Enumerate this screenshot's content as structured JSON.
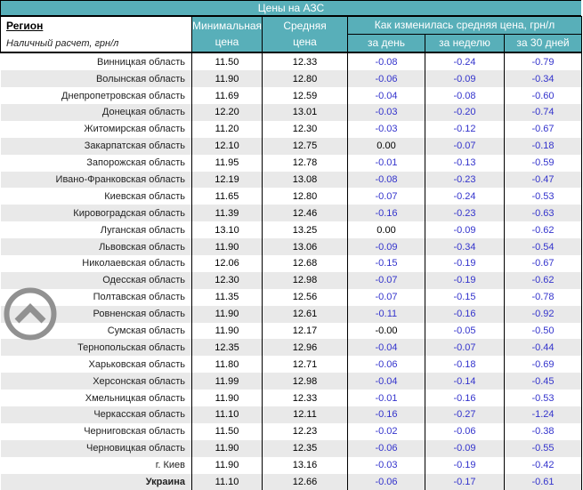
{
  "title": "Цены на АЗС",
  "header": {
    "region_label": "Регион",
    "region_sub": "Наличный расчет, грн/л",
    "min_price_l1": "Минимальная",
    "min_price_l2": "цена",
    "avg_price_l1": "Средняя",
    "avg_price_l2": "цена",
    "change_group": "Как изменилась средняя цена, грн/л",
    "change_cols": [
      "за день",
      "за неделю",
      "за 30 дней"
    ]
  },
  "colors": {
    "header_teal": "#58afb9",
    "stripe_gray": "#e9e9e9",
    "change_blue": "#3333cc",
    "icon_gray": "#919191",
    "border_black": "#000000"
  },
  "icons": {
    "scroll_top": "chevron-up-icon"
  },
  "rows": [
    {
      "region": "Винницкая область",
      "min": "11.50",
      "avg": "12.33",
      "day": "-0.08",
      "week": "-0.24",
      "month30": "-0.79"
    },
    {
      "region": "Волынская область",
      "min": "11.90",
      "avg": "12.80",
      "day": "-0.06",
      "week": "-0.09",
      "month30": "-0.34"
    },
    {
      "region": "Днепропетровская область",
      "min": "11.69",
      "avg": "12.59",
      "day": "-0.04",
      "week": "-0.08",
      "month30": "-0.60"
    },
    {
      "region": "Донецкая область",
      "min": "12.20",
      "avg": "13.01",
      "day": "-0.03",
      "week": "-0.20",
      "month30": "-0.74"
    },
    {
      "region": "Житомирская область",
      "min": "11.20",
      "avg": "12.30",
      "day": "-0.03",
      "week": "-0.12",
      "month30": "-0.67"
    },
    {
      "region": "Закарпатская область",
      "min": "12.10",
      "avg": "12.75",
      "day": "0.00",
      "week": "-0.07",
      "month30": "-0.18"
    },
    {
      "region": "Запорожская область",
      "min": "11.95",
      "avg": "12.78",
      "day": "-0.01",
      "week": "-0.13",
      "month30": "-0.59"
    },
    {
      "region": "Ивано-Франковская область",
      "min": "12.19",
      "avg": "13.08",
      "day": "-0.08",
      "week": "-0.23",
      "month30": "-0.47"
    },
    {
      "region": "Киевская область",
      "min": "11.65",
      "avg": "12.80",
      "day": "-0.07",
      "week": "-0.24",
      "month30": "-0.53"
    },
    {
      "region": "Кировоградская область",
      "min": "11.39",
      "avg": "12.46",
      "day": "-0.16",
      "week": "-0.23",
      "month30": "-0.63"
    },
    {
      "region": "Луганская область",
      "min": "13.10",
      "avg": "13.25",
      "day": "0.00",
      "week": "-0.09",
      "month30": "-0.62"
    },
    {
      "region": "Львовская область",
      "min": "11.90",
      "avg": "13.06",
      "day": "-0.09",
      "week": "-0.34",
      "month30": "-0.54"
    },
    {
      "region": "Николаевская область",
      "min": "12.06",
      "avg": "12.68",
      "day": "-0.15",
      "week": "-0.19",
      "month30": "-0.67"
    },
    {
      "region": "Одесская область",
      "min": "12.30",
      "avg": "12.98",
      "day": "-0.07",
      "week": "-0.19",
      "month30": "-0.62"
    },
    {
      "region": "Полтавская область",
      "min": "11.35",
      "avg": "12.56",
      "day": "-0.07",
      "week": "-0.15",
      "month30": "-0.78"
    },
    {
      "region": "Ровненская область",
      "min": "11.90",
      "avg": "12.61",
      "day": "-0.11",
      "week": "-0.16",
      "month30": "-0.92"
    },
    {
      "region": "Сумская область",
      "min": "11.90",
      "avg": "12.17",
      "day": "-0.00",
      "week": "-0.05",
      "month30": "-0.50"
    },
    {
      "region": "Тернопольская область",
      "min": "12.35",
      "avg": "12.96",
      "day": "-0.04",
      "week": "-0.07",
      "month30": "-0.44"
    },
    {
      "region": "Харьковская область",
      "min": "11.80",
      "avg": "12.71",
      "day": "-0.06",
      "week": "-0.18",
      "month30": "-0.69"
    },
    {
      "region": "Херсонская область",
      "min": "11.99",
      "avg": "12.98",
      "day": "-0.04",
      "week": "-0.14",
      "month30": "-0.45"
    },
    {
      "region": "Хмельницкая область",
      "min": "11.90",
      "avg": "12.33",
      "day": "-0.01",
      "week": "-0.16",
      "month30": "-0.53"
    },
    {
      "region": "Черкасская область",
      "min": "11.10",
      "avg": "12.11",
      "day": "-0.16",
      "week": "-0.27",
      "month30": "-1.24"
    },
    {
      "region": "Черниговская область",
      "min": "11.50",
      "avg": "12.23",
      "day": "-0.02",
      "week": "-0.06",
      "month30": "-0.38"
    },
    {
      "region": "Черновицкая область",
      "min": "11.90",
      "avg": "12.35",
      "day": "-0.06",
      "week": "-0.09",
      "month30": "-0.55"
    },
    {
      "region": "г. Киев",
      "min": "11.90",
      "avg": "13.16",
      "day": "-0.03",
      "week": "-0.19",
      "month30": "-0.42"
    },
    {
      "region": "Украина",
      "bold": true,
      "min": "11.10",
      "avg": "12.66",
      "day": "-0.06",
      "week": "-0.17",
      "month30": "-0.61"
    }
  ]
}
